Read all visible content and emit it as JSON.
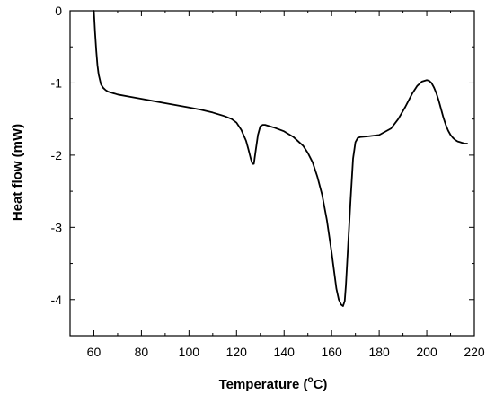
{
  "chart_data": {
    "type": "line",
    "xlabel": "Temperature (°C)",
    "xlabel_parts": {
      "before": "Temperature (",
      "sup": "o",
      "after": "C)"
    },
    "ylabel": "Heat flow (mW)",
    "xlim": [
      50,
      220
    ],
    "ylim": [
      -4.5,
      0
    ],
    "x_ticks": [
      60,
      80,
      100,
      120,
      140,
      160,
      180,
      200,
      220
    ],
    "y_ticks": [
      0,
      -1,
      -2,
      -3,
      -4
    ],
    "grid": false,
    "legend": "none",
    "series": [
      {
        "color": "#000000",
        "x": [
          60,
          60.5,
          61,
          61.5,
          62,
          63,
          64,
          65,
          66,
          68,
          70,
          75,
          80,
          85,
          90,
          95,
          100,
          105,
          110,
          115,
          118,
          120,
          122,
          124,
          125,
          126,
          126.7,
          127.3,
          128,
          129,
          130,
          131,
          132,
          134,
          136,
          140,
          144,
          148,
          150,
          152,
          154,
          156,
          158,
          160,
          161,
          162,
          163,
          164,
          164.8,
          165.5,
          166,
          167,
          168,
          169,
          170,
          171,
          172,
          175,
          180,
          185,
          188,
          191,
          194,
          196,
          198,
          200,
          201,
          202,
          203,
          204,
          205,
          206,
          207,
          208,
          209,
          210,
          211,
          212,
          213,
          214,
          215,
          216,
          217
        ],
        "y": [
          0,
          -0.3,
          -0.55,
          -0.75,
          -0.88,
          -1.02,
          -1.07,
          -1.1,
          -1.12,
          -1.14,
          -1.16,
          -1.19,
          -1.22,
          -1.25,
          -1.28,
          -1.31,
          -1.34,
          -1.37,
          -1.41,
          -1.46,
          -1.5,
          -1.55,
          -1.65,
          -1.8,
          -1.92,
          -2.05,
          -2.12,
          -2.12,
          -1.95,
          -1.72,
          -1.6,
          -1.58,
          -1.58,
          -1.6,
          -1.62,
          -1.67,
          -1.75,
          -1.87,
          -1.97,
          -2.1,
          -2.3,
          -2.55,
          -2.9,
          -3.35,
          -3.6,
          -3.85,
          -4.0,
          -4.07,
          -4.09,
          -4.02,
          -3.8,
          -3.2,
          -2.6,
          -2.05,
          -1.82,
          -1.76,
          -1.75,
          -1.74,
          -1.72,
          -1.63,
          -1.5,
          -1.33,
          -1.14,
          -1.04,
          -0.98,
          -0.96,
          -0.97,
          -1.0,
          -1.06,
          -1.14,
          -1.24,
          -1.36,
          -1.48,
          -1.58,
          -1.66,
          -1.72,
          -1.76,
          -1.79,
          -1.81,
          -1.82,
          -1.83,
          -1.84,
          -1.84
        ]
      }
    ]
  }
}
